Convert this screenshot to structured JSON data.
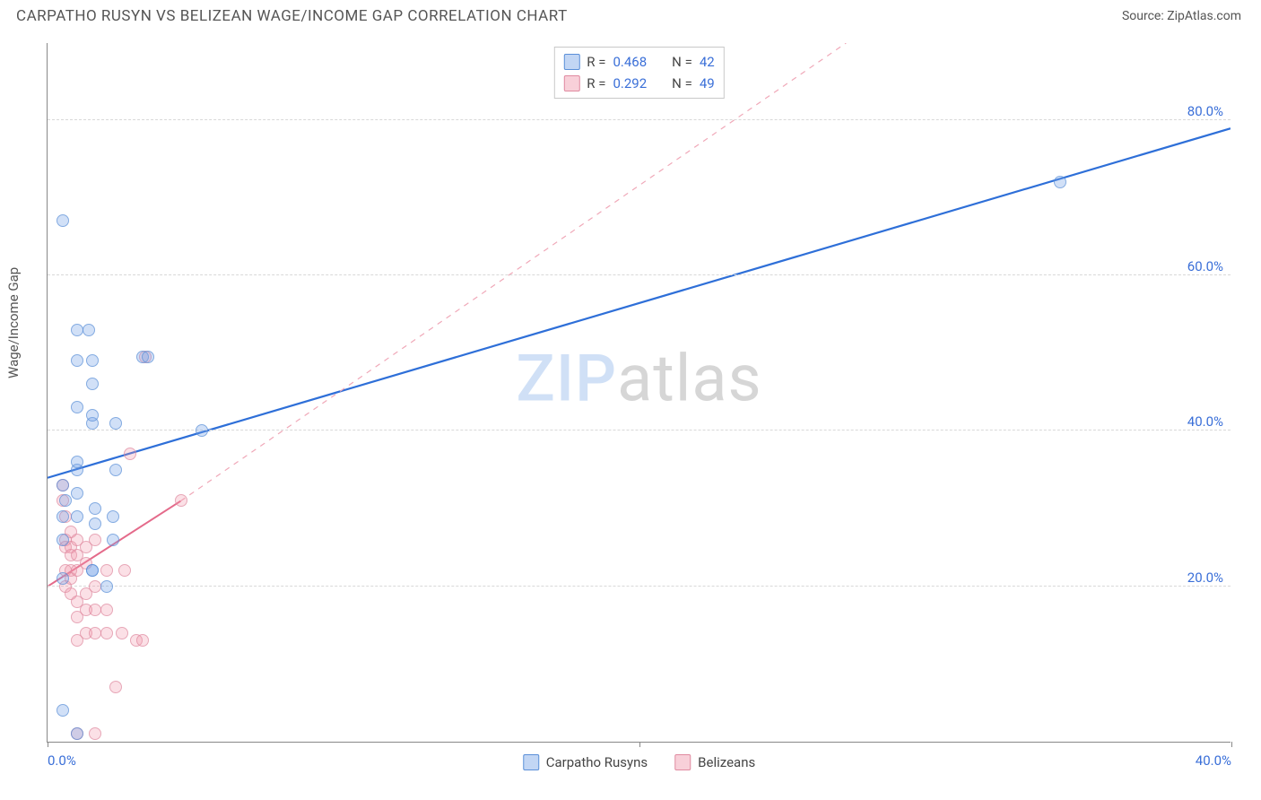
{
  "header": {
    "title": "CARPATHO RUSYN VS BELIZEAN WAGE/INCOME GAP CORRELATION CHART",
    "source_label": "Source: ZipAtlas.com"
  },
  "chart": {
    "type": "scatter",
    "ylabel": "Wage/Income Gap",
    "xlim": [
      0,
      40
    ],
    "ylim": [
      0,
      90
    ],
    "xtick_positions": [
      0,
      20,
      40
    ],
    "xtick_labels": [
      "0.0%",
      "",
      "40.0%"
    ],
    "ytick_positions": [
      20,
      40,
      60,
      80
    ],
    "ytick_labels": [
      "20.0%",
      "40.0%",
      "60.0%",
      "80.0%"
    ],
    "gridline_color": "#d8d8d8",
    "axis_color": "#888888",
    "label_color": "#3a6fd8",
    "background_color": "#ffffff",
    "watermark": {
      "part1": "ZIP",
      "part2": "atlas"
    },
    "series": [
      {
        "id": "a",
        "name": "Carpatho Rusyns",
        "color_fill": "rgba(120,165,230,0.45)",
        "color_stroke": "#5a8fd8",
        "marker_size": 14,
        "R": "0.468",
        "N": "42",
        "trend": {
          "x1": 0,
          "y1": 34,
          "x2": 40,
          "y2": 79,
          "width": 2.2,
          "dash": "none",
          "extend_dash": false
        },
        "points": [
          [
            0.5,
            67
          ],
          [
            0.5,
            4
          ],
          [
            0.5,
            29
          ],
          [
            0.5,
            33
          ],
          [
            0.5,
            26
          ],
          [
            0.5,
            21
          ],
          [
            0.6,
            31
          ],
          [
            1.0,
            53
          ],
          [
            1.0,
            49
          ],
          [
            1.0,
            43
          ],
          [
            1.0,
            35
          ],
          [
            1.0,
            36
          ],
          [
            1.0,
            29
          ],
          [
            1.0,
            32
          ],
          [
            1.0,
            1
          ],
          [
            1.4,
            53
          ],
          [
            1.5,
            49
          ],
          [
            1.5,
            46
          ],
          [
            1.5,
            41
          ],
          [
            1.5,
            42
          ],
          [
            1.6,
            30
          ],
          [
            1.6,
            28
          ],
          [
            1.5,
            22
          ],
          [
            1.5,
            22
          ],
          [
            2.0,
            20
          ],
          [
            2.2,
            26
          ],
          [
            2.2,
            29
          ],
          [
            2.3,
            35
          ],
          [
            2.3,
            41
          ],
          [
            3.2,
            49.5
          ],
          [
            3.4,
            49.5
          ],
          [
            5.2,
            40
          ],
          [
            34.2,
            72
          ]
        ]
      },
      {
        "id": "b",
        "name": "Belizeans",
        "color_fill": "rgba(240,150,170,0.40)",
        "color_stroke": "#e08aa0",
        "marker_size": 14,
        "R": "0.292",
        "N": "49",
        "trend": {
          "x1": 0,
          "y1": 20,
          "x2": 4.5,
          "y2": 31,
          "width": 2.0,
          "dash": "none",
          "extend_dash": true,
          "dash_x2": 27,
          "dash_y2": 90
        },
        "points": [
          [
            0.5,
            33
          ],
          [
            0.5,
            31
          ],
          [
            0.6,
            29
          ],
          [
            0.6,
            26
          ],
          [
            0.6,
            25
          ],
          [
            0.6,
            22
          ],
          [
            0.6,
            20
          ],
          [
            0.8,
            27
          ],
          [
            0.8,
            25
          ],
          [
            0.8,
            24
          ],
          [
            0.8,
            22
          ],
          [
            0.8,
            21
          ],
          [
            0.8,
            19
          ],
          [
            1.0,
            26
          ],
          [
            1.0,
            24
          ],
          [
            1.0,
            22
          ],
          [
            1.0,
            18
          ],
          [
            1.0,
            16
          ],
          [
            1.0,
            13
          ],
          [
            1.0,
            1
          ],
          [
            1.3,
            25
          ],
          [
            1.3,
            23
          ],
          [
            1.3,
            19
          ],
          [
            1.3,
            17
          ],
          [
            1.3,
            14
          ],
          [
            1.6,
            26
          ],
          [
            1.6,
            20
          ],
          [
            1.6,
            17
          ],
          [
            1.6,
            14
          ],
          [
            1.6,
            1
          ],
          [
            2.0,
            17
          ],
          [
            2.0,
            14
          ],
          [
            2.0,
            22
          ],
          [
            2.3,
            7
          ],
          [
            2.5,
            14
          ],
          [
            2.6,
            22
          ],
          [
            2.8,
            37
          ],
          [
            3.0,
            13
          ],
          [
            3.2,
            13
          ],
          [
            3.3,
            49.5
          ],
          [
            4.5,
            31
          ]
        ]
      }
    ],
    "legend_top": {
      "r_label": "R =",
      "n_label": "N ="
    },
    "legend_bottom": {
      "items": [
        "Carpatho Rusyns",
        "Belizeans"
      ]
    }
  }
}
